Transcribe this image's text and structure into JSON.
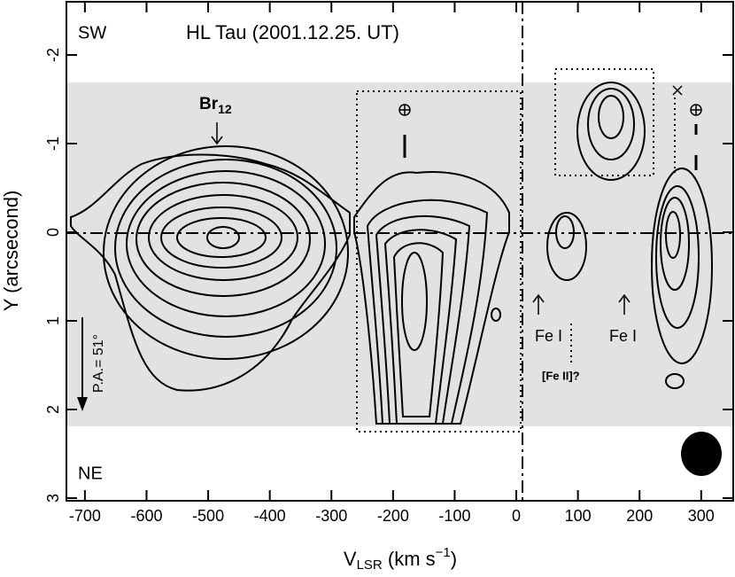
{
  "chart_data": {
    "type": "contour",
    "title": "HL Tau (2001.12.25. UT)",
    "x_label": {
      "main": "V",
      "sub": "LSR",
      "tail": " (km s",
      "sup": "−1",
      "end": ")"
    },
    "y_label": "Y (arcsecond)",
    "xlim": [
      -730,
      352
    ],
    "xticks": [
      -700,
      -600,
      -500,
      -400,
      -300,
      -200,
      -100,
      0,
      100,
      200,
      300
    ],
    "ylim": [
      -2.6,
      3.03
    ],
    "y_inverted": true,
    "yticks": [
      -2,
      -1,
      0,
      1,
      2,
      3
    ],
    "annotations": {
      "sw": "SW",
      "ne": "NE",
      "br": {
        "main": "Br",
        "sub": "12"
      },
      "fe1a": "Fe I",
      "fe1b": "Fe I",
      "fe2": "[Fe II]?",
      "pa": "P.A.= 51°"
    }
  }
}
